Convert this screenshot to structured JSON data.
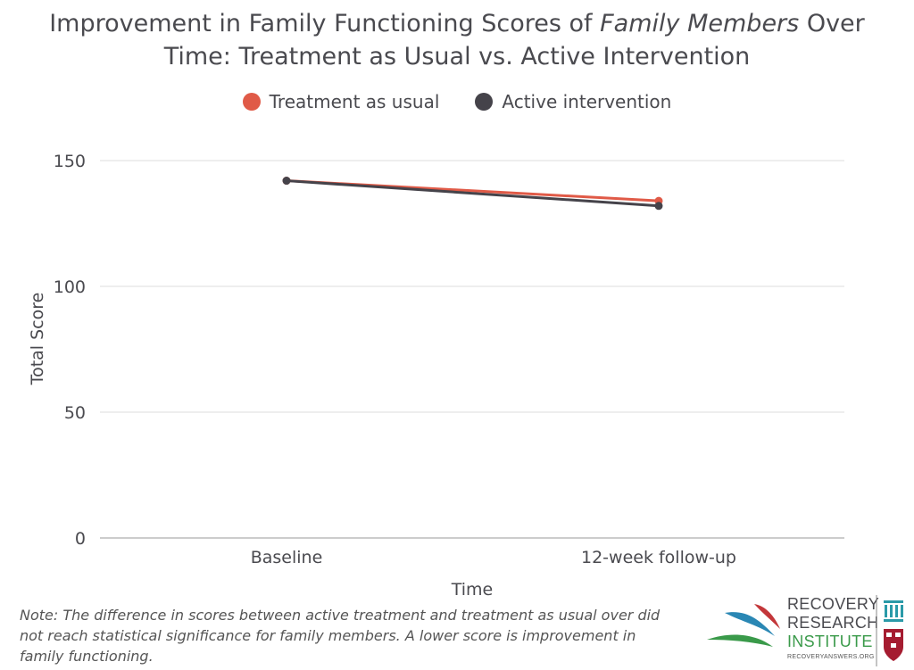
{
  "title_line1_pre": "Improvement in Family Functioning Scores of ",
  "title_line1_em": "Family Members",
  "title_line1_post": " Over",
  "title_line2": "Time: Treatment as Usual vs. Active Intervention",
  "note": "Note: The difference in scores between active treatment and treatment as usual over did not reach statistical significance for family members. A lower score is improvement in family functioning.",
  "logo": {
    "line1": "RECOVERY",
    "line2": "RESEARCH",
    "line3": "INSTITUTE",
    "url": "RECOVERYANSWERS.ORG"
  },
  "chart_data": {
    "type": "line",
    "categories": [
      "Baseline",
      "12-week follow-up"
    ],
    "series": [
      {
        "name": "Treatment as usual",
        "values": [
          142,
          134
        ],
        "color": "#e05a47"
      },
      {
        "name": "Active intervention",
        "values": [
          142,
          132
        ],
        "color": "#45434a"
      }
    ],
    "xlabel": "Time",
    "ylabel": "Total Score",
    "ylim": [
      0,
      150
    ],
    "yticks": [
      0,
      50,
      100,
      150
    ],
    "grid": true,
    "legend_position": "top-center"
  }
}
